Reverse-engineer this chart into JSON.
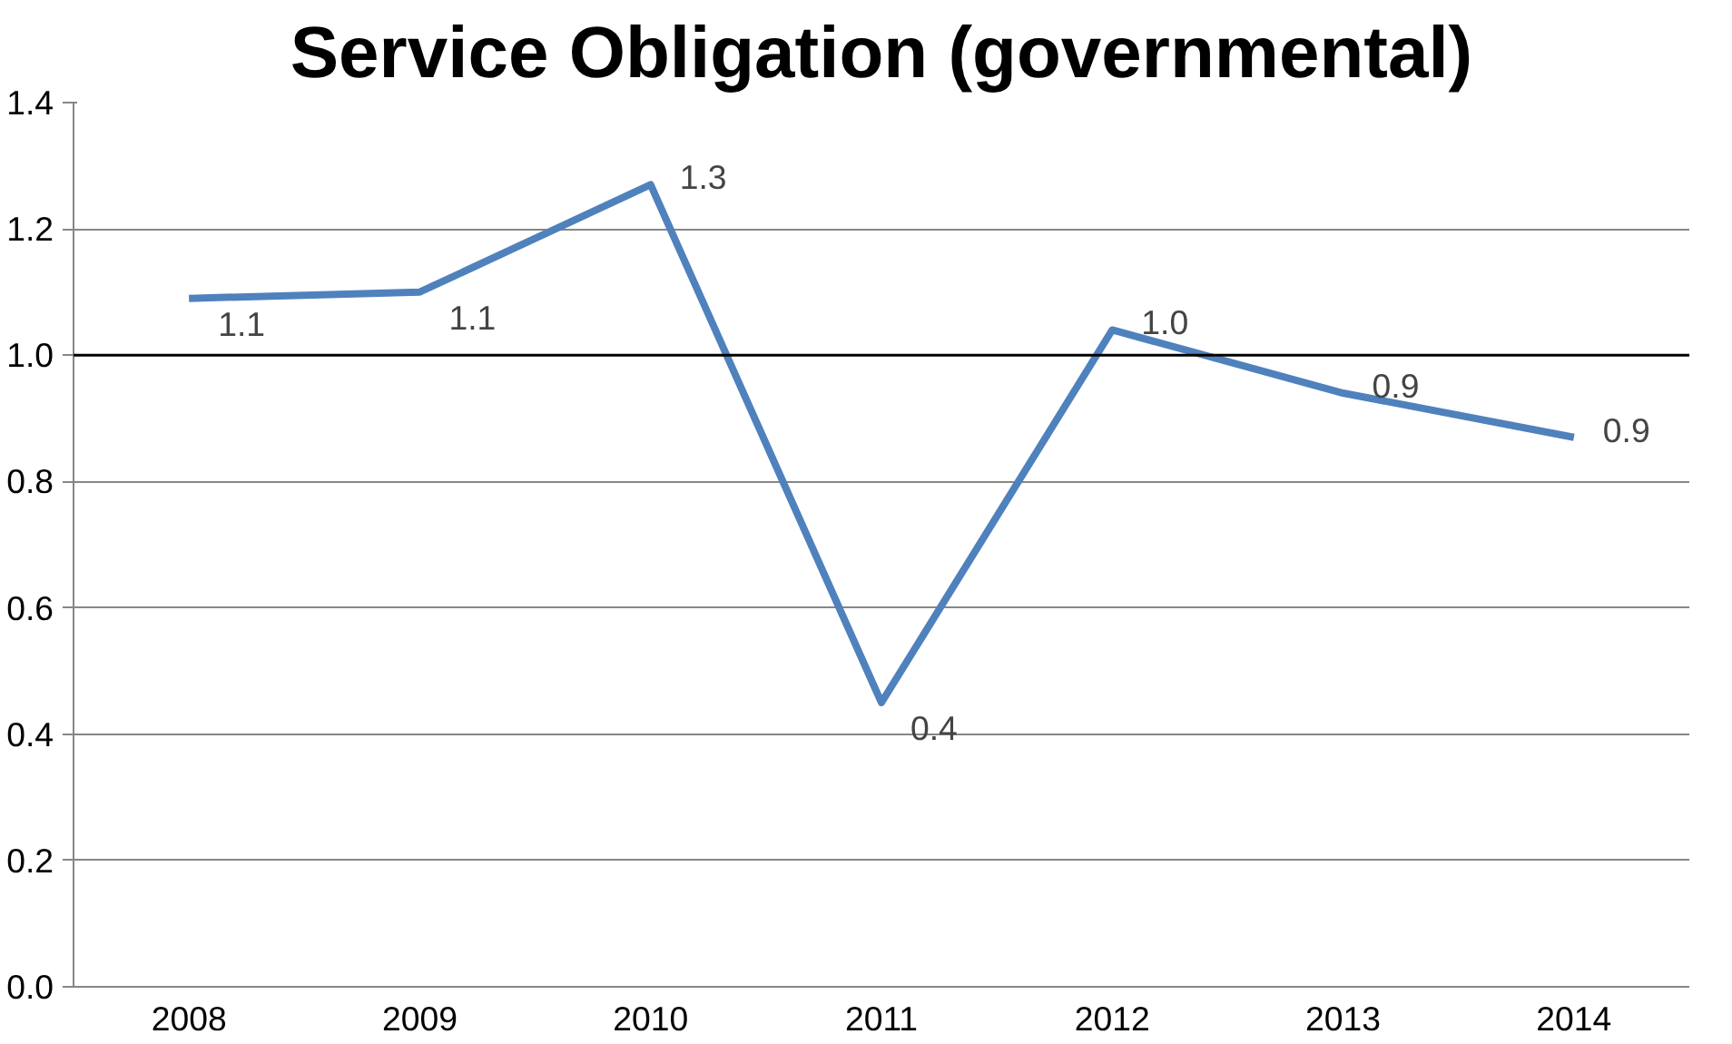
{
  "chart_data": {
    "type": "line",
    "title": "Service Obligation (governmental)",
    "categories": [
      "2008",
      "2009",
      "2010",
      "2011",
      "2012",
      "2013",
      "2014"
    ],
    "series": [
      {
        "color": "#4f81bd",
        "values": [
          1.09,
          1.1,
          1.27,
          0.45,
          1.04,
          0.94,
          0.87
        ],
        "value_labels": [
          "1.1",
          "1.1",
          "1.3",
          "0.4",
          "1.0",
          "0.9",
          "0.9"
        ]
      }
    ],
    "ylim": [
      0,
      1.4
    ],
    "yticks": [
      {
        "value": 0,
        "label": "0.0"
      },
      0.2,
      0.4,
      0.6,
      0.8,
      {
        "value": 1,
        "label": "1.0"
      },
      1.2,
      1.4
    ],
    "ref_lines": [
      {
        "axis": "y",
        "value": 1,
        "color": "#000000"
      }
    ],
    "grid": "y",
    "marker": "none",
    "line_style": "solid"
  }
}
